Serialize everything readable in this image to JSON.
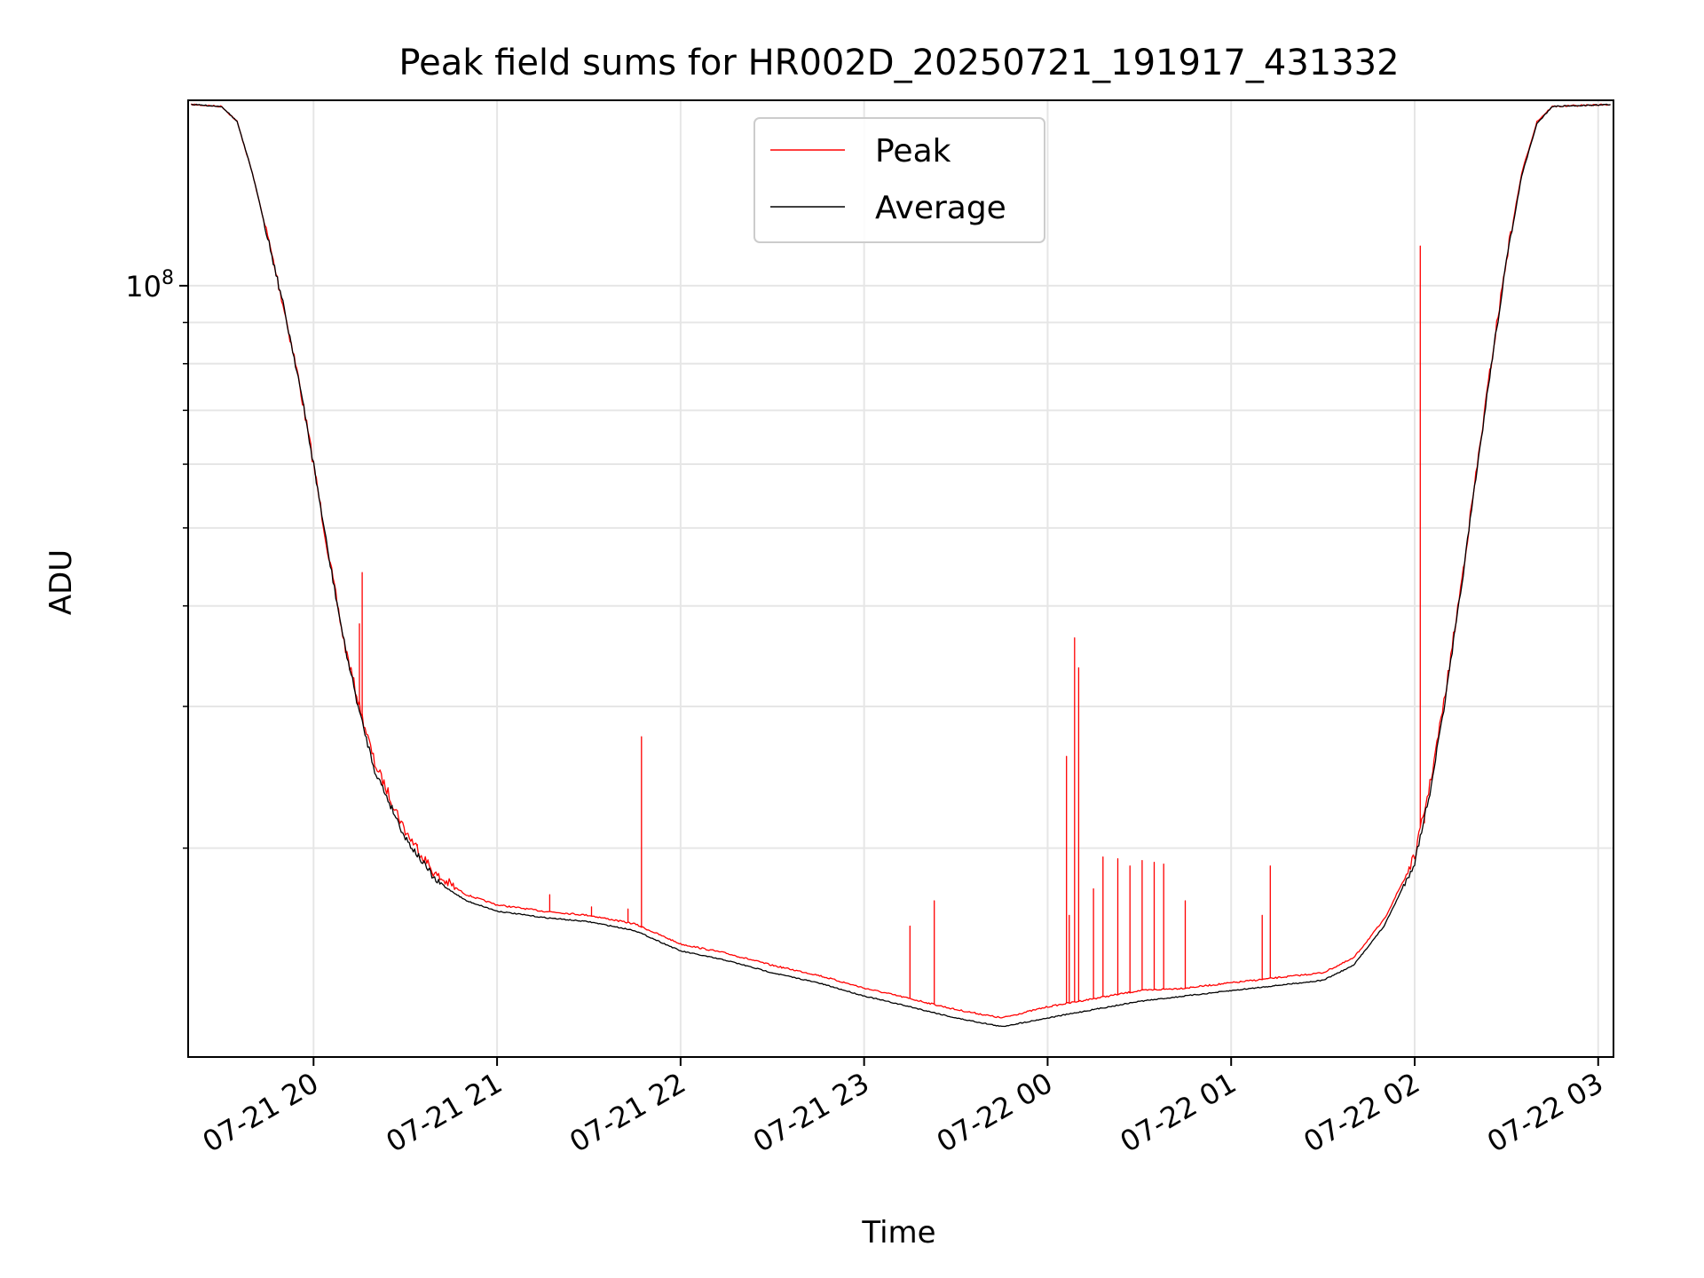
{
  "chart_data": {
    "type": "line",
    "title": "Peak field sums for HR002D_20250721_191917_431332",
    "xlabel": "Time",
    "ylabel": "ADU",
    "y_scale": "log",
    "x_tick_labels": [
      "07-21 20",
      "07-21 21",
      "07-21 22",
      "07-21 23",
      "07-22 00",
      "07-22 01",
      "07-22 02",
      "07-22 03"
    ],
    "x_tick_values": [
      "2025-07-21 20:00",
      "2025-07-21 21:00",
      "2025-07-21 22:00",
      "2025-07-21 23:00",
      "2025-07-22 00:00",
      "2025-07-22 01:00",
      "2025-07-22 02:00",
      "2025-07-22 03:00"
    ],
    "xlim": [
      "2025-07-21 19:19",
      "2025-07-22 03:05"
    ],
    "ylim": [
      11000000,
      170000000
    ],
    "y_major_tick_label": {
      "value": 100000000,
      "base": "10",
      "exp": "8"
    },
    "y_minor_ticks": [
      20000000,
      30000000,
      40000000,
      50000000,
      60000000,
      70000000,
      80000000,
      90000000,
      200000000
    ],
    "grid": true,
    "legend_position": "top-center",
    "series": [
      {
        "name": "Peak",
        "color": "#ff0000",
        "points": [
          [
            "2025-07-21 19:20",
            168000000
          ],
          [
            "2025-07-21 19:30",
            167000000
          ],
          [
            "2025-07-21 19:35",
            160000000
          ],
          [
            "2025-07-21 19:40",
            138000000
          ],
          [
            "2025-07-21 19:45",
            115000000
          ],
          [
            "2025-07-21 19:50",
            95000000
          ],
          [
            "2025-07-21 19:55",
            77000000
          ],
          [
            "2025-07-21 20:00",
            60000000
          ],
          [
            "2025-07-21 20:05",
            46000000
          ],
          [
            "2025-07-21 20:10",
            36000000
          ],
          [
            "2025-07-21 20:15",
            30000000
          ],
          [
            "2025-07-21 20:20",
            25500000
          ],
          [
            "2025-07-21 20:30",
            21000000
          ],
          [
            "2025-07-21 20:40",
            18500000
          ],
          [
            "2025-07-21 20:50",
            17500000
          ],
          [
            "2025-07-21 21:00",
            17000000
          ],
          [
            "2025-07-21 21:15",
            16700000
          ],
          [
            "2025-07-21 21:30",
            16500000
          ],
          [
            "2025-07-21 21:45",
            16100000
          ],
          [
            "2025-07-21 22:00",
            15200000
          ],
          [
            "2025-07-21 22:15",
            14800000
          ],
          [
            "2025-07-21 22:30",
            14300000
          ],
          [
            "2025-07-21 22:45",
            13900000
          ],
          [
            "2025-07-21 23:00",
            13400000
          ],
          [
            "2025-07-21 23:15",
            13000000
          ],
          [
            "2025-07-21 23:30",
            12600000
          ],
          [
            "2025-07-21 23:45",
            12300000
          ],
          [
            "2025-07-22 00:00",
            12700000
          ],
          [
            "2025-07-22 00:15",
            13000000
          ],
          [
            "2025-07-22 00:30",
            13300000
          ],
          [
            "2025-07-22 00:45",
            13400000
          ],
          [
            "2025-07-22 01:00",
            13600000
          ],
          [
            "2025-07-22 01:15",
            13800000
          ],
          [
            "2025-07-22 01:30",
            14000000
          ],
          [
            "2025-07-22 01:40",
            14600000
          ],
          [
            "2025-07-22 01:50",
            16300000
          ],
          [
            "2025-07-22 01:55",
            17800000
          ],
          [
            "2025-07-22 02:00",
            19500000
          ],
          [
            "2025-07-22 02:05",
            24000000
          ],
          [
            "2025-07-22 02:10",
            31000000
          ],
          [
            "2025-07-22 02:15",
            42000000
          ],
          [
            "2025-07-22 02:20",
            58000000
          ],
          [
            "2025-07-22 02:25",
            80000000
          ],
          [
            "2025-07-22 02:30",
            108000000
          ],
          [
            "2025-07-22 02:35",
            138000000
          ],
          [
            "2025-07-22 02:40",
            160000000
          ],
          [
            "2025-07-22 02:45",
            167000000
          ],
          [
            "2025-07-22 03:04",
            168000000
          ]
        ],
        "spikes": [
          [
            "2025-07-21 20:15",
            38000000
          ],
          [
            "2025-07-21 20:16",
            44000000
          ],
          [
            "2025-07-21 20:34",
            20200000
          ],
          [
            "2025-07-21 21:17",
            17500000
          ],
          [
            "2025-07-21 21:31",
            16900000
          ],
          [
            "2025-07-21 21:43",
            16800000
          ],
          [
            "2025-07-21 21:47",
            27500000
          ],
          [
            "2025-07-21 23:15",
            16000000
          ],
          [
            "2025-07-21 23:23",
            17200000
          ],
          [
            "2025-07-22 00:06",
            26000000
          ],
          [
            "2025-07-22 00:07",
            16500000
          ],
          [
            "2025-07-22 00:09",
            36500000
          ],
          [
            "2025-07-22 00:10",
            33500000
          ],
          [
            "2025-07-22 00:15",
            17800000
          ],
          [
            "2025-07-22 00:18",
            19500000
          ],
          [
            "2025-07-22 00:23",
            19400000
          ],
          [
            "2025-07-22 00:27",
            19000000
          ],
          [
            "2025-07-22 00:31",
            19300000
          ],
          [
            "2025-07-22 00:35",
            19200000
          ],
          [
            "2025-07-22 00:38",
            19100000
          ],
          [
            "2025-07-22 00:45",
            17200000
          ],
          [
            "2025-07-22 01:10",
            16500000
          ],
          [
            "2025-07-22 01:13",
            19000000
          ],
          [
            "2025-07-22 02:02",
            112000000
          ],
          [
            "2025-07-22 02:03",
            21500000
          ]
        ]
      },
      {
        "name": "Average",
        "color": "#000000",
        "points": [
          [
            "2025-07-21 19:20",
            168000000
          ],
          [
            "2025-07-21 19:30",
            167000000
          ],
          [
            "2025-07-21 19:35",
            160000000
          ],
          [
            "2025-07-21 19:40",
            138000000
          ],
          [
            "2025-07-21 19:45",
            115000000
          ],
          [
            "2025-07-21 19:50",
            95000000
          ],
          [
            "2025-07-21 19:55",
            77000000
          ],
          [
            "2025-07-21 20:00",
            60000000
          ],
          [
            "2025-07-21 20:05",
            46000000
          ],
          [
            "2025-07-21 20:10",
            36000000
          ],
          [
            "2025-07-21 20:15",
            29500000
          ],
          [
            "2025-07-21 20:20",
            25000000
          ],
          [
            "2025-07-21 20:30",
            20600000
          ],
          [
            "2025-07-21 20:40",
            18200000
          ],
          [
            "2025-07-21 20:50",
            17200000
          ],
          [
            "2025-07-21 21:00",
            16700000
          ],
          [
            "2025-07-21 21:15",
            16400000
          ],
          [
            "2025-07-21 21:30",
            16200000
          ],
          [
            "2025-07-21 21:45",
            15800000
          ],
          [
            "2025-07-21 22:00",
            14900000
          ],
          [
            "2025-07-21 22:15",
            14500000
          ],
          [
            "2025-07-21 22:30",
            14000000
          ],
          [
            "2025-07-21 22:45",
            13600000
          ],
          [
            "2025-07-21 23:00",
            13100000
          ],
          [
            "2025-07-21 23:15",
            12700000
          ],
          [
            "2025-07-21 23:30",
            12300000
          ],
          [
            "2025-07-21 23:45",
            12000000
          ],
          [
            "2025-07-22 00:00",
            12300000
          ],
          [
            "2025-07-22 00:15",
            12600000
          ],
          [
            "2025-07-22 00:30",
            12900000
          ],
          [
            "2025-07-22 00:45",
            13100000
          ],
          [
            "2025-07-22 01:00",
            13300000
          ],
          [
            "2025-07-22 01:15",
            13500000
          ],
          [
            "2025-07-22 01:30",
            13700000
          ],
          [
            "2025-07-22 01:40",
            14300000
          ],
          [
            "2025-07-22 01:50",
            16000000
          ],
          [
            "2025-07-22 01:55",
            17500000
          ],
          [
            "2025-07-22 02:00",
            19200000
          ],
          [
            "2025-07-22 02:05",
            23500000
          ],
          [
            "2025-07-22 02:10",
            30500000
          ],
          [
            "2025-07-22 02:15",
            41500000
          ],
          [
            "2025-07-22 02:20",
            57500000
          ],
          [
            "2025-07-22 02:25",
            79500000
          ],
          [
            "2025-07-22 02:30",
            107000000
          ],
          [
            "2025-07-22 02:35",
            137000000
          ],
          [
            "2025-07-22 02:40",
            159000000
          ],
          [
            "2025-07-22 02:45",
            167000000
          ],
          [
            "2025-07-22 03:04",
            168000000
          ]
        ]
      }
    ]
  }
}
